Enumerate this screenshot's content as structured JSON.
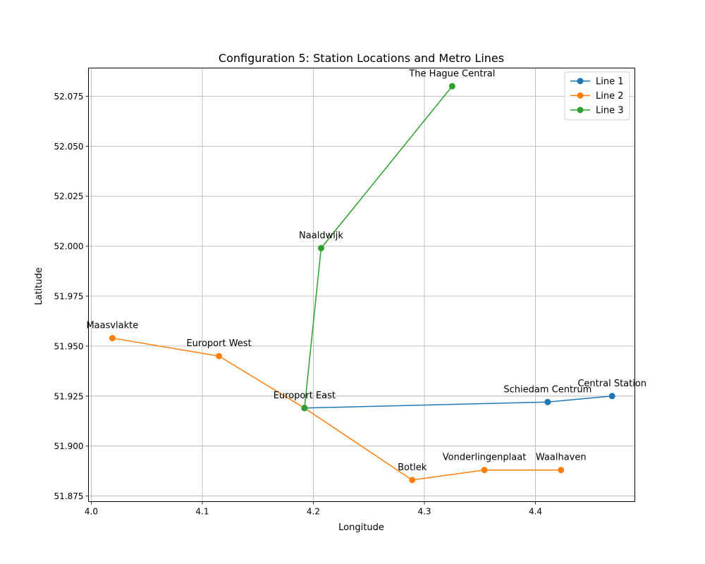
{
  "chart_data": {
    "type": "line",
    "title": "Configuration 5: Station Locations and Metro Lines",
    "xlabel": "Longitude",
    "ylabel": "Latitude",
    "xlim": [
      3.9975,
      4.4895
    ],
    "ylim": [
      51.8722,
      52.0891
    ],
    "x_ticks": [
      4.0,
      4.1,
      4.2,
      4.3,
      4.4
    ],
    "x_tick_labels": [
      "4.0",
      "4.1",
      "4.2",
      "4.3",
      "4.4"
    ],
    "y_ticks": [
      51.875,
      51.9,
      51.925,
      51.95,
      51.975,
      52.0,
      52.025,
      52.05,
      52.075
    ],
    "y_tick_labels": [
      "51.875",
      "51.900",
      "51.925",
      "51.950",
      "51.975",
      "52.000",
      "52.025",
      "52.050",
      "52.075"
    ],
    "grid": true,
    "legend_position": "top-right",
    "series": [
      {
        "name": "Line 1",
        "color": "#1f77b4",
        "points": [
          {
            "x": 4.192,
            "y": 51.919
          },
          {
            "x": 4.411,
            "y": 51.922
          },
          {
            "x": 4.469,
            "y": 51.925
          }
        ]
      },
      {
        "name": "Line 2",
        "color": "#ff7f0e",
        "points": [
          {
            "x": 4.019,
            "y": 51.954
          },
          {
            "x": 4.115,
            "y": 51.945
          },
          {
            "x": 4.192,
            "y": 51.919
          },
          {
            "x": 4.289,
            "y": 51.883
          },
          {
            "x": 4.354,
            "y": 51.888
          },
          {
            "x": 4.423,
            "y": 51.888
          }
        ]
      },
      {
        "name": "Line 3",
        "color": "#2ca02c",
        "points": [
          {
            "x": 4.192,
            "y": 51.919
          },
          {
            "x": 4.207,
            "y": 51.999
          },
          {
            "x": 4.325,
            "y": 52.08
          }
        ]
      }
    ],
    "stations": [
      {
        "name": "The Hague Central",
        "x": 4.325,
        "y": 52.08
      },
      {
        "name": "Naaldwijk",
        "x": 4.207,
        "y": 51.999
      },
      {
        "name": "Maasvlakte",
        "x": 4.019,
        "y": 51.954
      },
      {
        "name": "Europort West",
        "x": 4.115,
        "y": 51.945
      },
      {
        "name": "Europort East",
        "x": 4.192,
        "y": 51.919
      },
      {
        "name": "Schiedam Centrum",
        "x": 4.411,
        "y": 51.922
      },
      {
        "name": "Central Station",
        "x": 4.469,
        "y": 51.925
      },
      {
        "name": "Botlek",
        "x": 4.289,
        "y": 51.883
      },
      {
        "name": "Vonderlingenplaat",
        "x": 4.354,
        "y": 51.888
      },
      {
        "name": "Waalhaven",
        "x": 4.423,
        "y": 51.888
      }
    ]
  }
}
